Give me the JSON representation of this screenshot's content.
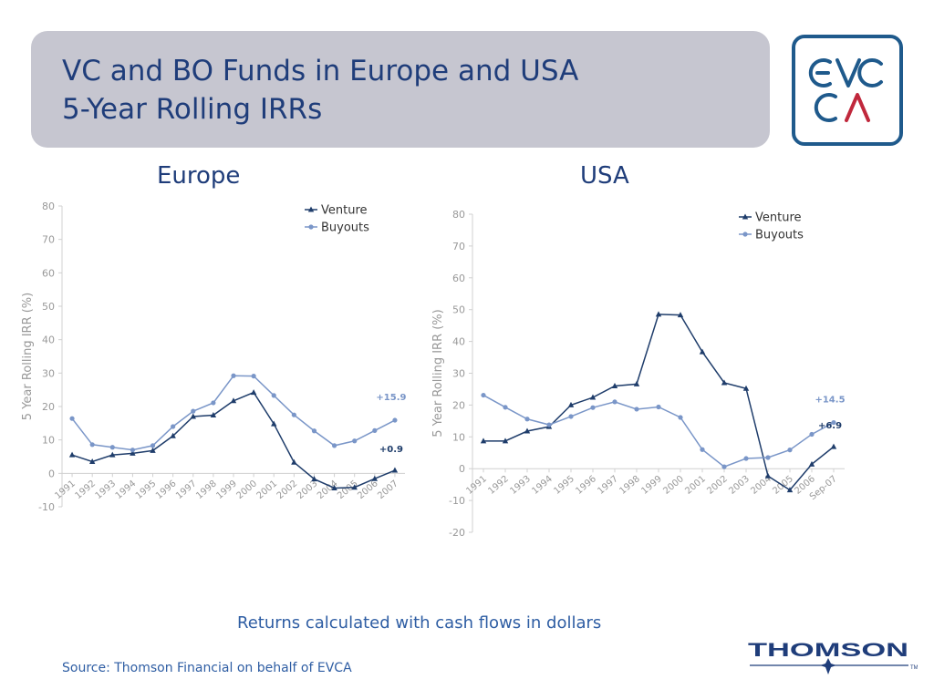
{
  "slide": {
    "title_line1": "VC and BO Funds in Europe and USA",
    "title_line2": "5-Year Rolling IRRs",
    "note": "Returns calculated with cash flows in dollars",
    "source": "Source: Thomson Financial on behalf of EVCA",
    "logo_text_top": "EVC",
    "logo_text_bottom": "CA",
    "footer_brand": "THOMSON",
    "footer_tm": "TM"
  },
  "colors": {
    "venture": "#1f3d6b",
    "buyouts": "#7a96c8",
    "axis_text": "#999999",
    "title": "#1f3d7a"
  },
  "chart_data": [
    {
      "type": "line",
      "title": "Europe",
      "xlabel": "",
      "ylabel": "5 Year Rolling IRR (%)",
      "ylim": [
        -10,
        80
      ],
      "yticks": [
        -10,
        0,
        10,
        20,
        30,
        40,
        50,
        60,
        70,
        80
      ],
      "categories": [
        "1991",
        "1992",
        "1993",
        "1994",
        "1995",
        "1996",
        "1997",
        "1998",
        "1999",
        "2000",
        "2001",
        "2002",
        "2003",
        "2004",
        "2005",
        "2006",
        "2007"
      ],
      "legend": "top-right",
      "series": [
        {
          "name": "Venture",
          "marker": "triangle",
          "values": [
            5.5,
            3.5,
            5.5,
            6.0,
            6.8,
            11.2,
            17.0,
            17.4,
            21.7,
            24.2,
            14.8,
            3.3,
            -1.7,
            -4.4,
            -4.2,
            -1.6,
            0.9
          ]
        },
        {
          "name": "Buyouts",
          "marker": "circle",
          "values": [
            16.4,
            8.6,
            7.8,
            7.0,
            8.3,
            14.0,
            18.6,
            21.1,
            29.2,
            29.1,
            23.3,
            17.5,
            12.7,
            8.3,
            9.7,
            12.8,
            15.9
          ]
        }
      ],
      "annotations": [
        {
          "text": "+15.9",
          "series": "Buyouts",
          "x": "2007",
          "y": 15.9
        },
        {
          "text": "+0.9",
          "series": "Venture",
          "x": "2007",
          "y": 0.9
        }
      ]
    },
    {
      "type": "line",
      "title": "USA",
      "xlabel": "",
      "ylabel": "5 Year Rolling IRR (%)",
      "ylim": [
        -20,
        80
      ],
      "yticks": [
        -20,
        -10,
        0,
        10,
        20,
        30,
        40,
        50,
        60,
        70,
        80
      ],
      "categories": [
        "1991",
        "1992",
        "1993",
        "1994",
        "1995",
        "1996",
        "1997",
        "1998",
        "1999",
        "2000",
        "2001",
        "2002",
        "2003",
        "2004",
        "2005",
        "2006",
        "Sep-07"
      ],
      "legend": "top-right",
      "series": [
        {
          "name": "Venture",
          "marker": "triangle",
          "values": [
            8.7,
            8.7,
            11.8,
            13.2,
            20.0,
            22.4,
            26.0,
            26.6,
            48.5,
            48.3,
            36.7,
            27.0,
            25.2,
            -2.3,
            -6.7,
            1.4,
            6.9
          ]
        },
        {
          "name": "Buyouts",
          "marker": "circle",
          "values": [
            23.1,
            19.3,
            15.6,
            13.8,
            16.4,
            19.2,
            21.0,
            18.7,
            19.4,
            16.1,
            6.0,
            0.6,
            3.2,
            3.5,
            5.9,
            10.8,
            14.5
          ]
        }
      ],
      "annotations": [
        {
          "text": "+14.5",
          "series": "Buyouts",
          "x": "Sep-07",
          "y": 14.5
        },
        {
          "text": "+6.9",
          "series": "Venture",
          "x": "Sep-07",
          "y": 6.9
        }
      ]
    }
  ]
}
